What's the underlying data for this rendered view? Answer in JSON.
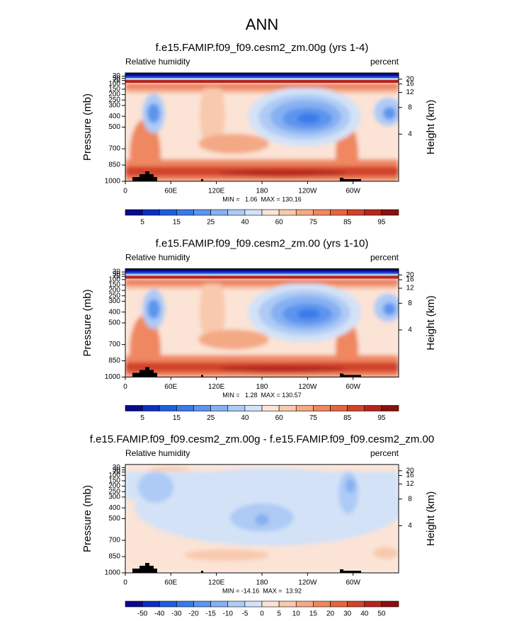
{
  "title": "ANN",
  "axes": {
    "y_label": "Pressure (mb)",
    "y2_label": "Height (km)",
    "xlim": [
      0,
      360
    ],
    "xticks": [
      0,
      {
        "value": 60,
        "label": "60E"
      },
      {
        "value": 120,
        "label": "120E"
      },
      180,
      {
        "value": 240,
        "label": "120W"
      },
      {
        "value": 300,
        "label": "60W"
      }
    ],
    "ylim": [
      1000,
      0
    ],
    "yticks": [
      1000,
      850,
      700,
      500,
      400,
      300,
      250,
      200,
      150,
      100,
      70,
      50,
      30
    ],
    "y2ticks": [
      4,
      8,
      12,
      16,
      20
    ]
  },
  "panels": [
    {
      "title": "f.e15.FAMIP.f09_f09.cesm2_zm.00g (yrs 1-4)",
      "left_label": "Relative humidity",
      "right_label": "percent",
      "stats": "MIN =   1.06  MAX = 130.16",
      "colorbar": {
        "labels": [
          5,
          15,
          25,
          40,
          60,
          75,
          85,
          95
        ],
        "colors": [
          "#0a0a8c",
          "#0c2fbf",
          "#1f5fe0",
          "#3a7ae8",
          "#5d94ee",
          "#86b0f2",
          "#aecbf5",
          "#d3e2f7",
          "#fbe3d6",
          "#f8c9ad",
          "#f4a985",
          "#ef8760",
          "#e5653f",
          "#d1432a",
          "#b6251b",
          "#8b0f0f"
        ]
      }
    },
    {
      "title": "f.e15.FAMIP.f09_f09.cesm2_zm.00 (yrs 1-10)",
      "left_label": "Relative humidity",
      "right_label": "percent",
      "stats": "MIN =   1.28  MAX = 130.57",
      "colorbar": {
        "labels": [
          5,
          15,
          25,
          40,
          60,
          75,
          85,
          95
        ],
        "colors": [
          "#0a0a8c",
          "#0c2fbf",
          "#1f5fe0",
          "#3a7ae8",
          "#5d94ee",
          "#86b0f2",
          "#aecbf5",
          "#d3e2f7",
          "#fbe3d6",
          "#f8c9ad",
          "#f4a985",
          "#ef8760",
          "#e5653f",
          "#d1432a",
          "#b6251b",
          "#8b0f0f"
        ]
      }
    },
    {
      "title": "f.e15.FAMIP.f09_f09.cesm2_zm.00g - f.e15.FAMIP.f09_f09.cesm2_zm.00",
      "left_label": "Relative humidity",
      "right_label": "percent",
      "stats": "MIN = -14.16  MAX =  13.92",
      "colorbar": {
        "labels": [
          -50,
          -40,
          -30,
          -20,
          -15,
          -10,
          -5,
          0,
          5,
          10,
          15,
          20,
          30,
          40,
          50
        ],
        "colors": [
          "#0a0a8c",
          "#0c2fbf",
          "#1f5fe0",
          "#3a7ae8",
          "#5d94ee",
          "#86b0f2",
          "#aecbf5",
          "#d3e2f7",
          "#fbe3d6",
          "#f8c9ad",
          "#f4a985",
          "#ef8760",
          "#e5653f",
          "#d1432a",
          "#b6251b",
          "#8b0f0f"
        ]
      }
    }
  ]
}
